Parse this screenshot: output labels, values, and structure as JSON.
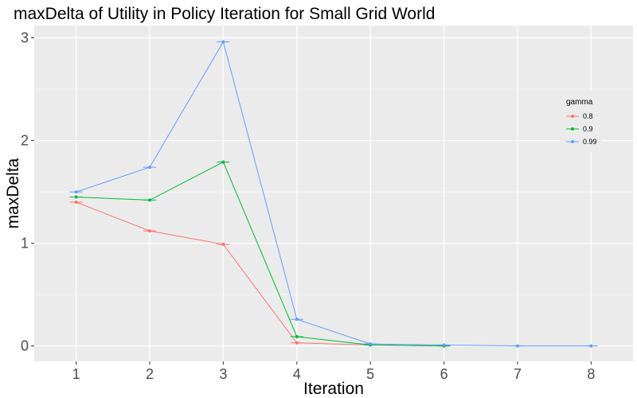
{
  "chart_data": {
    "type": "line",
    "title": "maxDelta of Utility in Policy Iteration for Small Grid World",
    "xlabel": "Iteration",
    "ylabel": "maxDelta",
    "x_ticks": [
      "1",
      "2",
      "3",
      "4",
      "5",
      "6",
      "7",
      "8"
    ],
    "y_ticks": [
      "0",
      "1",
      "2",
      "3"
    ],
    "xlim": [
      0.43,
      8.57
    ],
    "ylim": [
      -0.15,
      3.12
    ],
    "grid": true,
    "legend_title": "gamma",
    "legend_position": "right",
    "background_color": "#ebebeb",
    "series": [
      {
        "name": "0.8",
        "color": "#f8766d",
        "x": [
          1,
          2,
          3,
          4,
          5,
          6
        ],
        "y": [
          1.4,
          1.12,
          0.99,
          0.03,
          0.01,
          0.0
        ]
      },
      {
        "name": "0.9",
        "color": "#00ba38",
        "x": [
          1,
          2,
          3,
          4,
          5,
          6
        ],
        "y": [
          1.45,
          1.42,
          1.79,
          0.09,
          0.01,
          0.0
        ]
      },
      {
        "name": "0.99",
        "color": "#619cff",
        "x": [
          1,
          2,
          3,
          4,
          5,
          6,
          7,
          8
        ],
        "y": [
          1.5,
          1.74,
          2.96,
          0.26,
          0.02,
          0.01,
          0.0,
          0.0
        ]
      }
    ]
  }
}
